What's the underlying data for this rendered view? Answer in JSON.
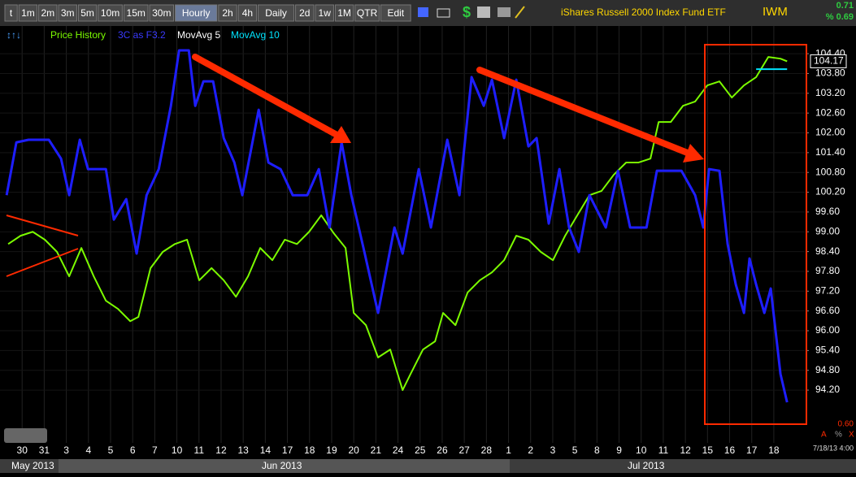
{
  "toolbar": {
    "timeframes": [
      "t",
      "1m",
      "2m",
      "3m",
      "5m",
      "10m",
      "15m",
      "30m",
      "Hourly",
      "2h",
      "4h",
      "Daily",
      "2d",
      "1w",
      "1M",
      "QTR",
      "Edit"
    ],
    "active": "Hourly",
    "title": "iShares Russell 2000 Index Fund ETF",
    "symbol": "IWM",
    "change": "0.71",
    "change_pct": "% 0.69"
  },
  "chart_data": {
    "type": "line",
    "series": [
      {
        "name": "Price History",
        "color": "#7cfc00",
        "x": [
          -0.63,
          -0.07,
          0.48,
          1.03,
          1.58,
          2.13,
          2.68,
          3.24,
          3.79,
          4.34,
          4.89,
          5.26,
          5.81,
          6.36,
          6.91,
          7.46,
          8.01,
          8.57,
          9.12,
          9.67,
          10.22,
          10.77,
          11.32,
          11.88,
          12.43,
          12.98,
          13.53,
          14.08,
          14.63,
          15.0,
          15.55,
          16.1,
          16.65,
          17.21,
          17.57,
          18.13,
          18.68,
          19.04,
          19.6,
          20.15,
          20.7,
          21.25,
          21.8,
          22.35,
          22.9,
          23.46,
          24.01,
          24.56,
          25.11,
          25.66,
          26.21,
          26.76,
          27.32,
          27.87,
          28.42,
          28.79,
          29.34,
          29.89,
          30.44,
          30.99,
          31.54,
          32.1,
          32.65,
          33.2,
          33.75,
          34.3,
          34.6
        ],
        "values": [
          98.63,
          98.88,
          99.0,
          98.76,
          98.39,
          97.65,
          98.51,
          97.65,
          96.91,
          96.66,
          96.29,
          96.42,
          97.9,
          98.39,
          98.63,
          98.76,
          97.53,
          97.9,
          97.53,
          97.03,
          97.65,
          98.51,
          98.14,
          98.76,
          98.63,
          99.0,
          99.5,
          98.97,
          98.51,
          96.54,
          96.17,
          95.19,
          95.43,
          94.2,
          94.69,
          95.43,
          95.68,
          96.54,
          96.17,
          97.16,
          97.53,
          97.77,
          98.14,
          98.88,
          98.76,
          98.39,
          98.14,
          98.88,
          99.5,
          100.11,
          100.24,
          100.73,
          101.1,
          101.1,
          101.22,
          102.33,
          102.33,
          102.82,
          102.95,
          103.44,
          103.56,
          103.07,
          103.44,
          103.69,
          104.3,
          104.25,
          104.17
        ]
      },
      {
        "name": "3C as F3.2",
        "color": "#1e1eff",
        "x": [
          -0.7,
          -0.26,
          0.29,
          1.21,
          1.76,
          2.13,
          2.61,
          2.98,
          3.79,
          4.15,
          4.71,
          5.18,
          5.63,
          6.18,
          6.73,
          7.1,
          7.54,
          7.83,
          8.2,
          8.64,
          9.12,
          9.6,
          9.96,
          10.7,
          11.14,
          11.69,
          12.24,
          12.9,
          13.42,
          13.9,
          14.45,
          14.89,
          15.48,
          16.1,
          16.84,
          17.21,
          17.94,
          18.49,
          19.23,
          19.78,
          20.33,
          20.88,
          21.25,
          21.8,
          22.35,
          22.9,
          23.27,
          23.82,
          24.3,
          24.74,
          25.18,
          25.66,
          26.4,
          26.95,
          27.5,
          28.24,
          28.71,
          29.82,
          30.44,
          30.81,
          31.07,
          31.54,
          31.91,
          32.28,
          32.65,
          32.9,
          33.2,
          33.57,
          33.86,
          34.3,
          34.6
        ],
        "values": [
          100.11,
          101.71,
          101.79,
          101.79,
          101.22,
          100.11,
          101.79,
          100.9,
          100.9,
          99.37,
          99.99,
          98.34,
          100.11,
          100.9,
          102.82,
          104.5,
          104.5,
          102.82,
          103.56,
          103.56,
          101.84,
          101.1,
          100.11,
          102.7,
          101.1,
          100.9,
          100.11,
          100.11,
          100.9,
          99.13,
          101.71,
          100.11,
          98.39,
          96.54,
          99.13,
          98.34,
          100.9,
          99.13,
          101.79,
          100.11,
          103.69,
          102.82,
          103.61,
          101.84,
          103.61,
          101.59,
          101.84,
          99.25,
          100.9,
          99.13,
          98.39,
          100.11,
          99.13,
          100.85,
          99.13,
          99.13,
          100.85,
          100.85,
          100.11,
          99.13,
          100.9,
          100.85,
          98.63,
          97.4,
          96.54,
          98.19,
          97.4,
          96.54,
          97.28,
          94.69,
          93.83
        ]
      },
      {
        "name": "MovAvg 5",
        "color": "#ffffff",
        "x": [],
        "values": []
      },
      {
        "name": "MovAvg 10",
        "color": "#00e5ff",
        "x": [
          33.2,
          34.6
        ],
        "values": [
          103.93,
          103.93
        ]
      }
    ],
    "xlim": [
      -1,
      35.4
    ],
    "xticks": [
      {
        "value": 0,
        "label": "30"
      },
      {
        "value": 1,
        "label": "31"
      },
      {
        "value": 2,
        "label": "3"
      },
      {
        "value": 3,
        "label": "4"
      },
      {
        "value": 4,
        "label": "5"
      },
      {
        "value": 5,
        "label": "6"
      },
      {
        "value": 6,
        "label": "7"
      },
      {
        "value": 7,
        "label": "10"
      },
      {
        "value": 8,
        "label": "11"
      },
      {
        "value": 9,
        "label": "12"
      },
      {
        "value": 10,
        "label": "13"
      },
      {
        "value": 11,
        "label": "14"
      },
      {
        "value": 12,
        "label": "17"
      },
      {
        "value": 13,
        "label": "18"
      },
      {
        "value": 14,
        "label": "19"
      },
      {
        "value": 15,
        "label": "20"
      },
      {
        "value": 16,
        "label": "21"
      },
      {
        "value": 17,
        "label": "24"
      },
      {
        "value": 18,
        "label": "25"
      },
      {
        "value": 19,
        "label": "26"
      },
      {
        "value": 20,
        "label": "27"
      },
      {
        "value": 21,
        "label": "28"
      },
      {
        "value": 22,
        "label": "1"
      },
      {
        "value": 23,
        "label": "2"
      },
      {
        "value": 24,
        "label": "3"
      },
      {
        "value": 25,
        "label": "5"
      },
      {
        "value": 26,
        "label": "8"
      },
      {
        "value": 27,
        "label": "9"
      },
      {
        "value": 28,
        "label": "10"
      },
      {
        "value": 29,
        "label": "11"
      },
      {
        "value": 30,
        "label": "12"
      },
      {
        "value": 31,
        "label": "15"
      },
      {
        "value": 32,
        "label": "16"
      },
      {
        "value": 33,
        "label": "17"
      },
      {
        "value": 34,
        "label": "18"
      }
    ],
    "months": [
      "May 2013",
      "Jun 2013",
      "Jul 2013"
    ],
    "ylim": [
      92.6,
      105.24
    ],
    "yticks": [
      {
        "value": 94.2,
        "label": "94.20"
      },
      {
        "value": 94.8,
        "label": "94.80"
      },
      {
        "value": 95.4,
        "label": "95.40"
      },
      {
        "value": 96,
        "label": "96.00"
      },
      {
        "value": 96.6,
        "label": "96.60"
      },
      {
        "value": 97.2,
        "label": "97.20"
      },
      {
        "value": 97.8,
        "label": "97.80"
      },
      {
        "value": 98.4,
        "label": "98.40"
      },
      {
        "value": 99,
        "label": "99.00"
      },
      {
        "value": 99.6,
        "label": "99.60"
      },
      {
        "value": 100.2,
        "label": "100.20"
      },
      {
        "value": 100.8,
        "label": "100.80"
      },
      {
        "value": 101.4,
        "label": "101.40"
      },
      {
        "value": 102,
        "label": "102.00"
      },
      {
        "value": 102.6,
        "label": "102.60"
      },
      {
        "value": 103.2,
        "label": "103.20"
      },
      {
        "value": 103.8,
        "label": "103.80"
      },
      {
        "value": 104.4,
        "label": "104.40"
      }
    ],
    "last_price": {
      "value": 104.17,
      "label": "104.17"
    },
    "grid": true,
    "footer": {
      "value": "0.60",
      "date": "7/18/13 4:00",
      "a": "A",
      "pct": "%",
      "x": "X"
    }
  }
}
